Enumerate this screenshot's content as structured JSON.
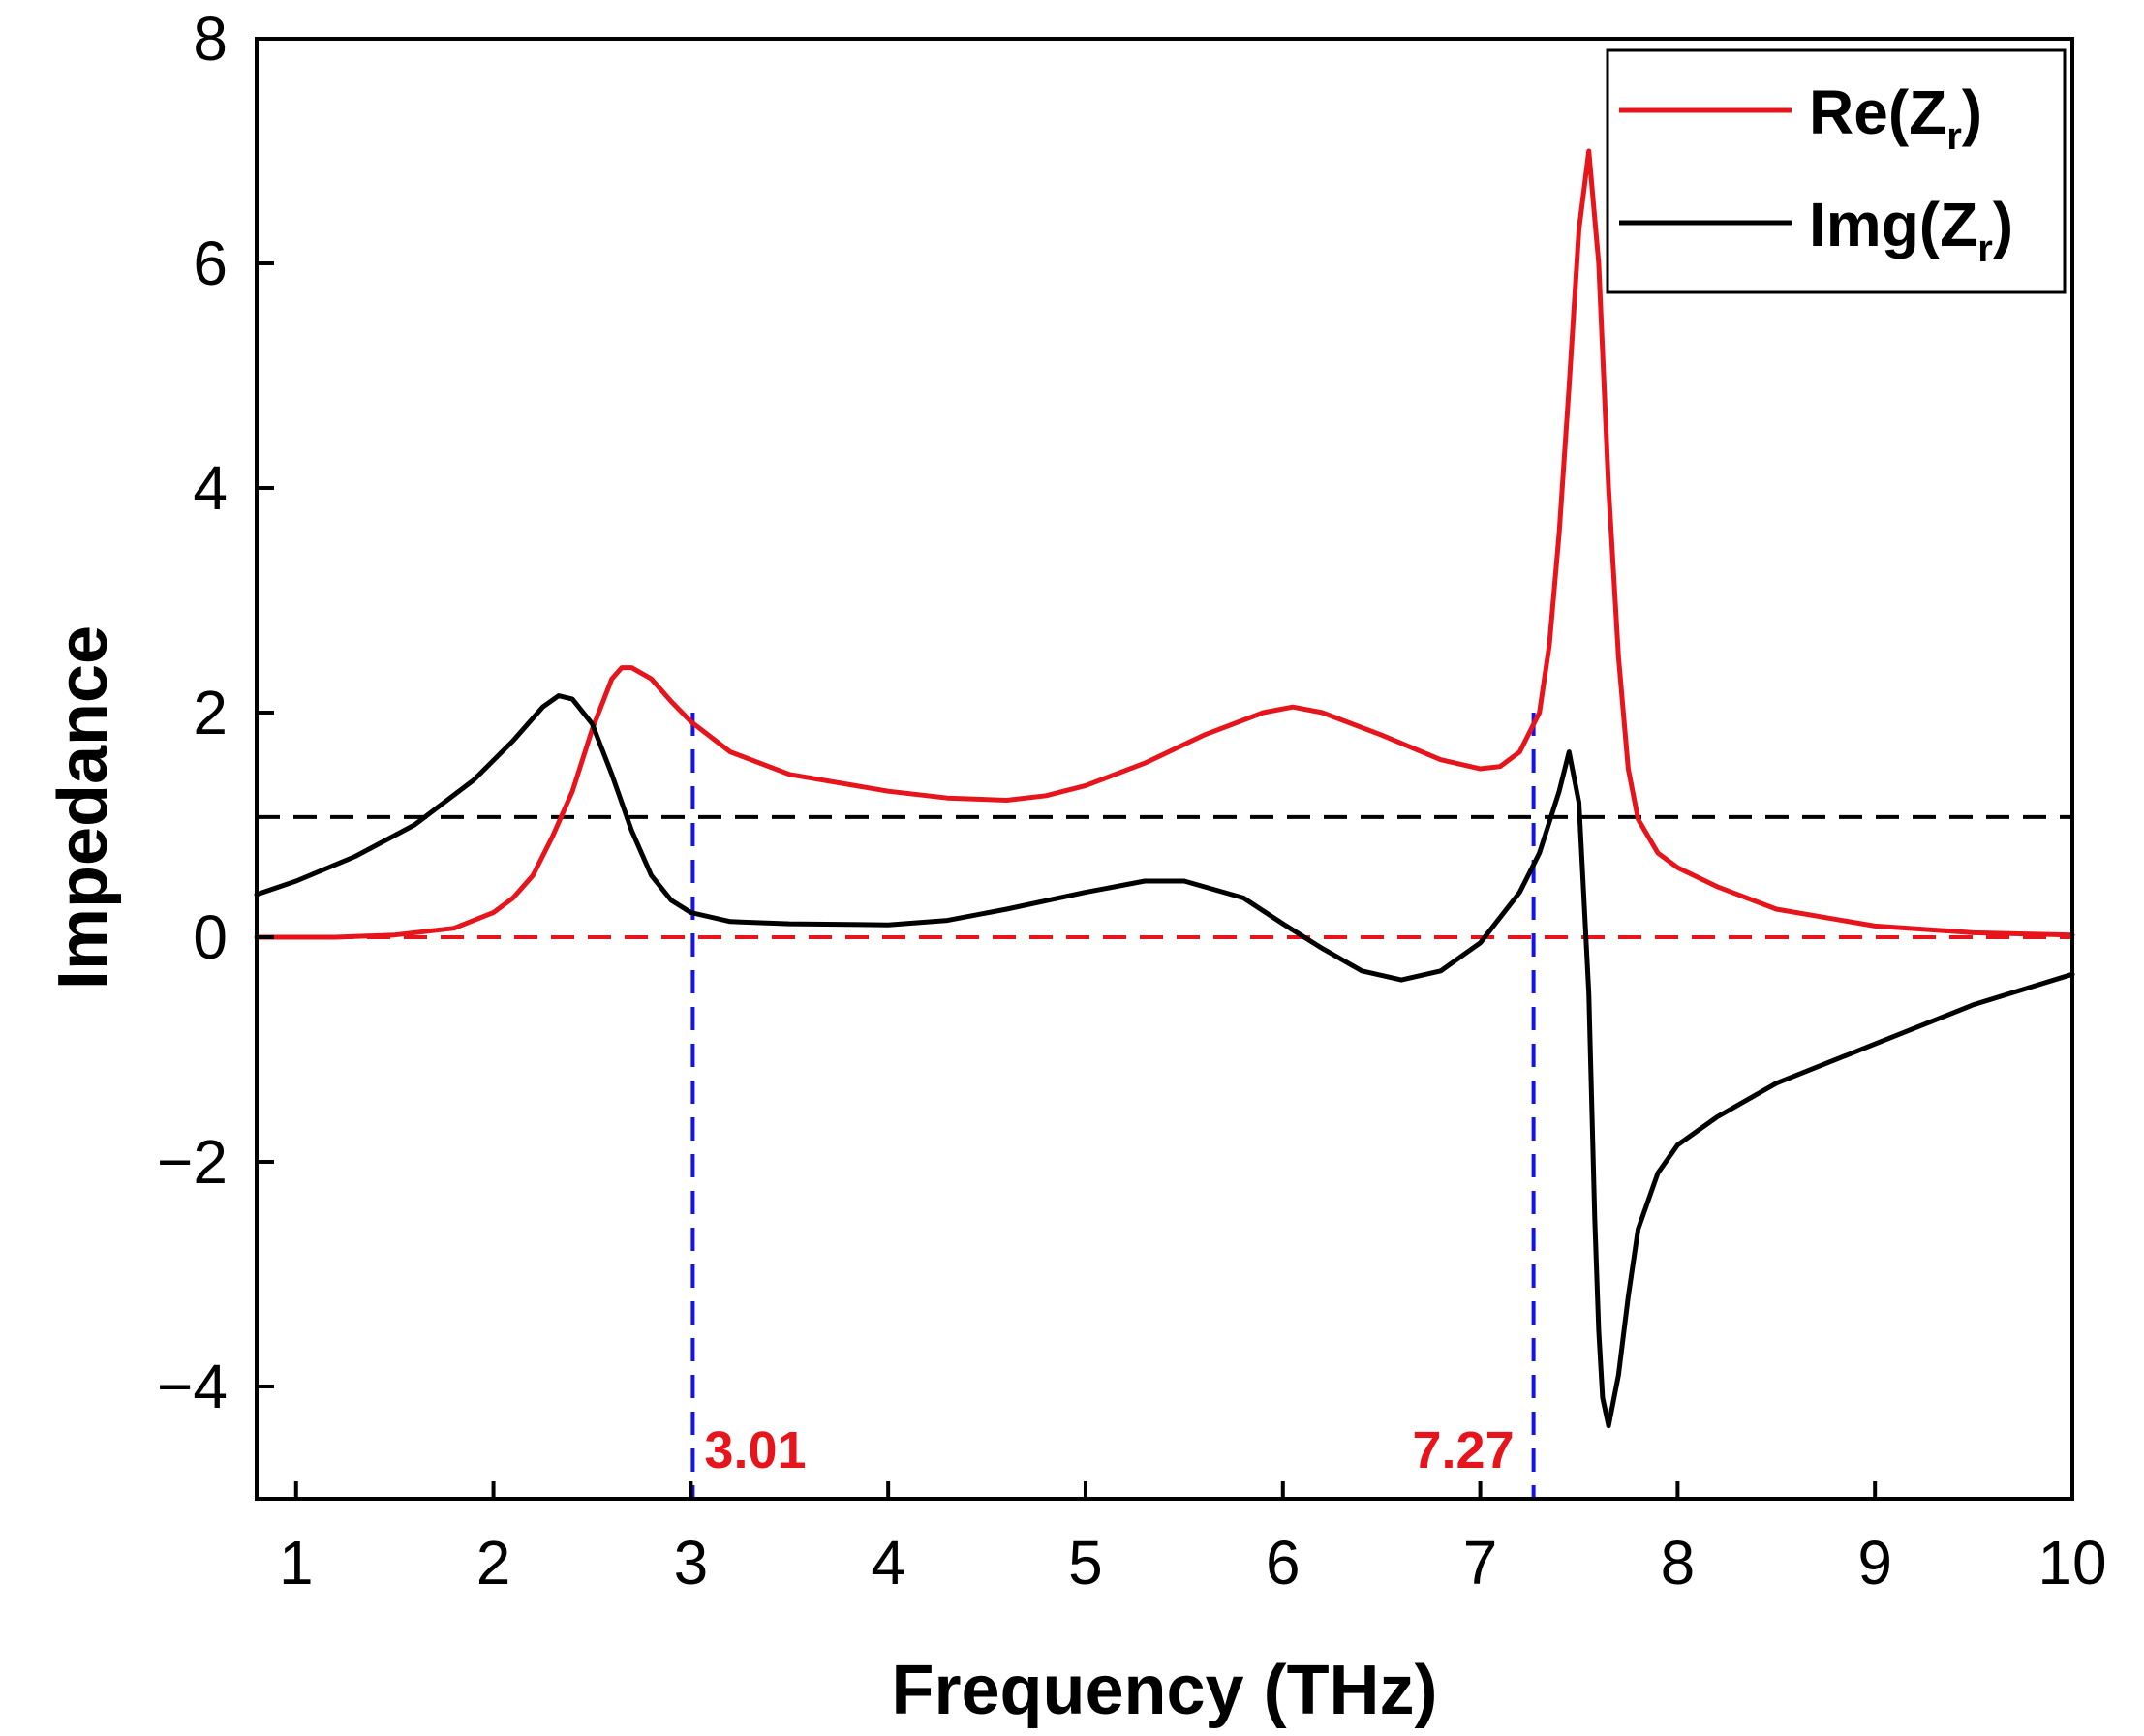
{
  "chart_data": {
    "type": "line",
    "xlabel": "Frequency (THz)",
    "ylabel": "Impedance",
    "xlim": [
      0.8,
      10
    ],
    "ylim": [
      -5,
      8
    ],
    "xticks": [
      1,
      2,
      3,
      4,
      5,
      6,
      7,
      8,
      9,
      10
    ],
    "yticks": [
      -4,
      -2,
      0,
      2,
      4,
      6,
      8
    ],
    "ytick_labels": [
      "−4",
      "−2",
      "0",
      "2",
      "4",
      "6",
      "8"
    ],
    "legend": {
      "position": "top-right",
      "entries": [
        {
          "base": "Re(Z",
          "sub": "r",
          "close": ")",
          "color": "#e8141c"
        },
        {
          "base": "Img(Z",
          "sub": "r",
          "close": ")",
          "color": "#000000"
        }
      ]
    },
    "series": [
      {
        "name": "Re(Zr)",
        "color": "#e8141c",
        "points": [
          [
            0.8,
            0.0
          ],
          [
            1.2,
            0.0
          ],
          [
            1.5,
            0.02
          ],
          [
            1.8,
            0.08
          ],
          [
            2.0,
            0.22
          ],
          [
            2.1,
            0.35
          ],
          [
            2.2,
            0.55
          ],
          [
            2.3,
            0.9
          ],
          [
            2.4,
            1.3
          ],
          [
            2.5,
            1.85
          ],
          [
            2.6,
            2.3
          ],
          [
            2.65,
            2.4
          ],
          [
            2.7,
            2.4
          ],
          [
            2.8,
            2.3
          ],
          [
            2.9,
            2.1
          ],
          [
            3.0,
            1.92
          ],
          [
            3.2,
            1.65
          ],
          [
            3.5,
            1.45
          ],
          [
            4.0,
            1.3
          ],
          [
            4.3,
            1.24
          ],
          [
            4.6,
            1.22
          ],
          [
            4.8,
            1.26
          ],
          [
            5.0,
            1.35
          ],
          [
            5.3,
            1.55
          ],
          [
            5.6,
            1.8
          ],
          [
            5.9,
            2.0
          ],
          [
            6.05,
            2.05
          ],
          [
            6.2,
            2.0
          ],
          [
            6.5,
            1.8
          ],
          [
            6.8,
            1.58
          ],
          [
            7.0,
            1.5
          ],
          [
            7.1,
            1.52
          ],
          [
            7.2,
            1.65
          ],
          [
            7.3,
            2.0
          ],
          [
            7.35,
            2.6
          ],
          [
            7.4,
            3.6
          ],
          [
            7.45,
            4.9
          ],
          [
            7.5,
            6.3
          ],
          [
            7.55,
            7.0
          ],
          [
            7.6,
            6.0
          ],
          [
            7.65,
            4.0
          ],
          [
            7.7,
            2.5
          ],
          [
            7.75,
            1.5
          ],
          [
            7.8,
            1.05
          ],
          [
            7.9,
            0.75
          ],
          [
            8.0,
            0.62
          ],
          [
            8.2,
            0.45
          ],
          [
            8.5,
            0.25
          ],
          [
            9.0,
            0.1
          ],
          [
            9.5,
            0.04
          ],
          [
            10.0,
            0.02
          ]
        ]
      },
      {
        "name": "Img(Zr)",
        "color": "#000000",
        "points": [
          [
            0.8,
            0.38
          ],
          [
            1.0,
            0.5
          ],
          [
            1.3,
            0.72
          ],
          [
            1.6,
            1.0
          ],
          [
            1.9,
            1.4
          ],
          [
            2.1,
            1.75
          ],
          [
            2.25,
            2.05
          ],
          [
            2.33,
            2.15
          ],
          [
            2.4,
            2.12
          ],
          [
            2.5,
            1.9
          ],
          [
            2.6,
            1.45
          ],
          [
            2.7,
            0.95
          ],
          [
            2.8,
            0.55
          ],
          [
            2.9,
            0.33
          ],
          [
            3.0,
            0.22
          ],
          [
            3.2,
            0.14
          ],
          [
            3.5,
            0.12
          ],
          [
            4.0,
            0.11
          ],
          [
            4.3,
            0.15
          ],
          [
            4.6,
            0.25
          ],
          [
            5.0,
            0.4
          ],
          [
            5.3,
            0.5
          ],
          [
            5.5,
            0.5
          ],
          [
            5.8,
            0.35
          ],
          [
            6.0,
            0.12
          ],
          [
            6.2,
            -0.1
          ],
          [
            6.4,
            -0.3
          ],
          [
            6.6,
            -0.38
          ],
          [
            6.8,
            -0.3
          ],
          [
            7.0,
            -0.05
          ],
          [
            7.2,
            0.4
          ],
          [
            7.3,
            0.75
          ],
          [
            7.4,
            1.3
          ],
          [
            7.45,
            1.65
          ],
          [
            7.5,
            1.2
          ],
          [
            7.55,
            -0.5
          ],
          [
            7.58,
            -2.5
          ],
          [
            7.6,
            -3.5
          ],
          [
            7.62,
            -4.1
          ],
          [
            7.65,
            -4.35
          ],
          [
            7.7,
            -3.9
          ],
          [
            7.75,
            -3.2
          ],
          [
            7.8,
            -2.6
          ],
          [
            7.9,
            -2.1
          ],
          [
            8.0,
            -1.85
          ],
          [
            8.2,
            -1.6
          ],
          [
            8.5,
            -1.3
          ],
          [
            9.0,
            -0.95
          ],
          [
            9.5,
            -0.6
          ],
          [
            10.0,
            -0.33
          ]
        ]
      }
    ],
    "reference_lines": [
      {
        "orientation": "horizontal",
        "y": 0,
        "color": "#e8141c",
        "style": "dashed"
      },
      {
        "orientation": "horizontal",
        "y": 1.07,
        "color": "#000000",
        "style": "dashed"
      },
      {
        "orientation": "vertical",
        "x": 3.01,
        "y_top": 2.0,
        "color": "#1414e8",
        "style": "dashed"
      },
      {
        "orientation": "vertical",
        "x": 7.27,
        "y_top": 2.0,
        "color": "#1414e8",
        "style": "dashed"
      }
    ],
    "annotations": [
      {
        "text": "3.01",
        "x": 3.01,
        "color": "#e8141c",
        "anchor": "right-of-line"
      },
      {
        "text": "7.27",
        "x": 7.27,
        "color": "#e8141c",
        "anchor": "left-of-line"
      }
    ]
  }
}
